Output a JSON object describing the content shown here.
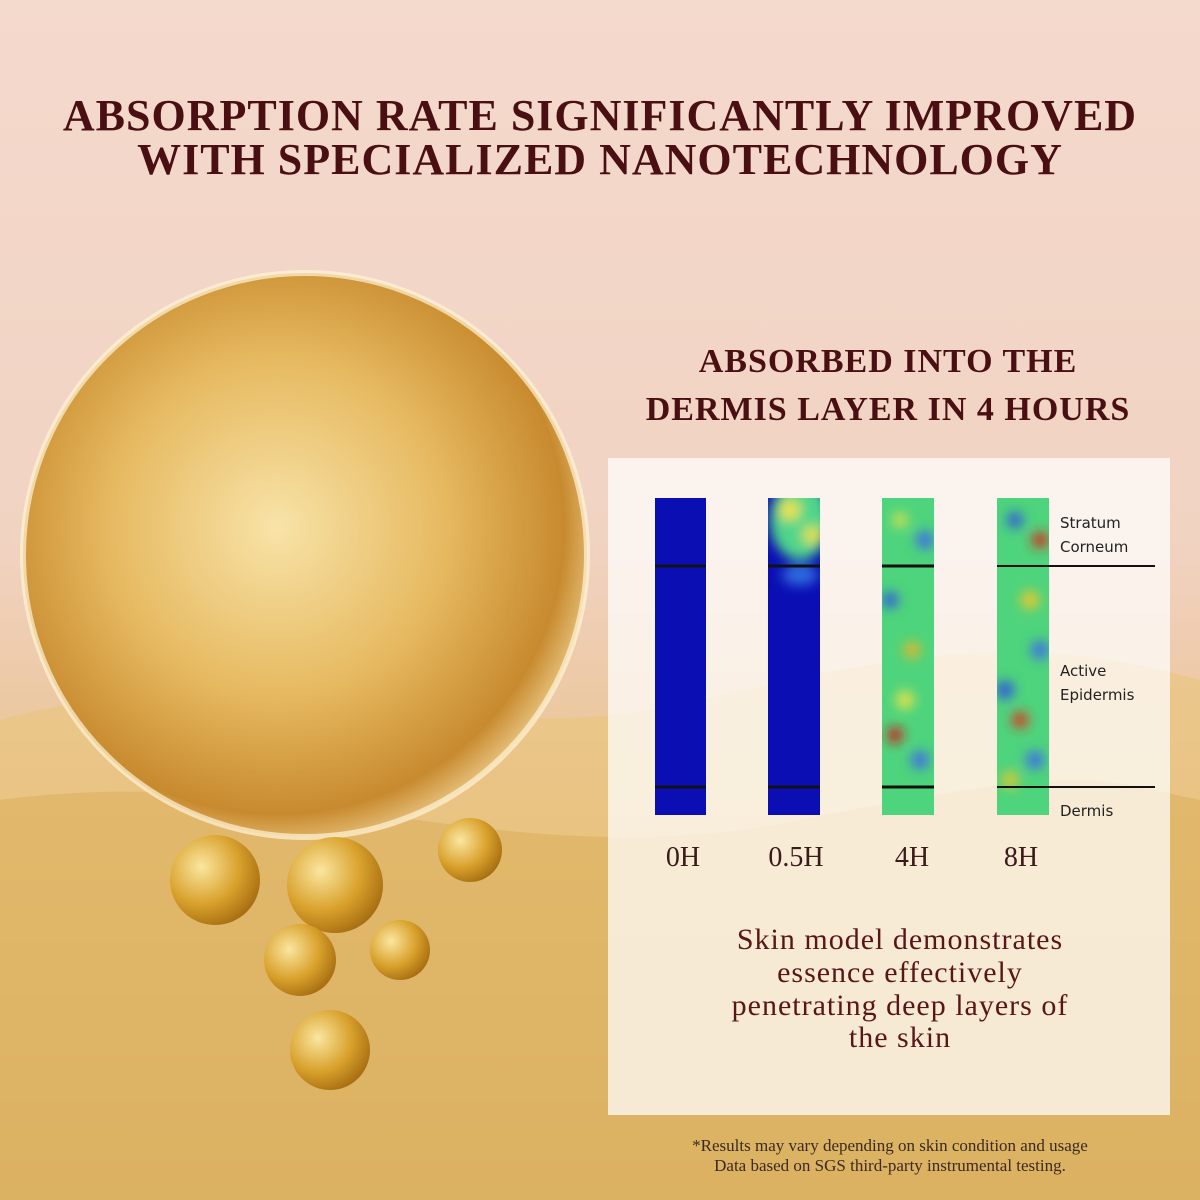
{
  "header": {
    "title": [
      "ABSORPTION RATE SIGNIFICANTLY IMPROVED",
      "WITH SPECIALIZED NANOTECHNOLOGY"
    ],
    "subtitle": [
      "ABSORBED INTO THE",
      "DERMIS LAYER IN 4 HOURS"
    ]
  },
  "panel": {
    "layers": [
      [
        "Stratum",
        "Corneum"
      ],
      [
        "Active",
        "Epidermis"
      ],
      [
        "Dermis"
      ]
    ],
    "times": [
      "0H",
      "0.5H",
      "4H",
      "8H"
    ],
    "description": [
      "Skin model demonstrates",
      "essence effectively",
      "penetrating deep layers of",
      "the skin"
    ]
  },
  "footnote": [
    "*Results may vary depending on skin condition and usage",
    "Data based on SGS third-party instrumental testing."
  ]
}
